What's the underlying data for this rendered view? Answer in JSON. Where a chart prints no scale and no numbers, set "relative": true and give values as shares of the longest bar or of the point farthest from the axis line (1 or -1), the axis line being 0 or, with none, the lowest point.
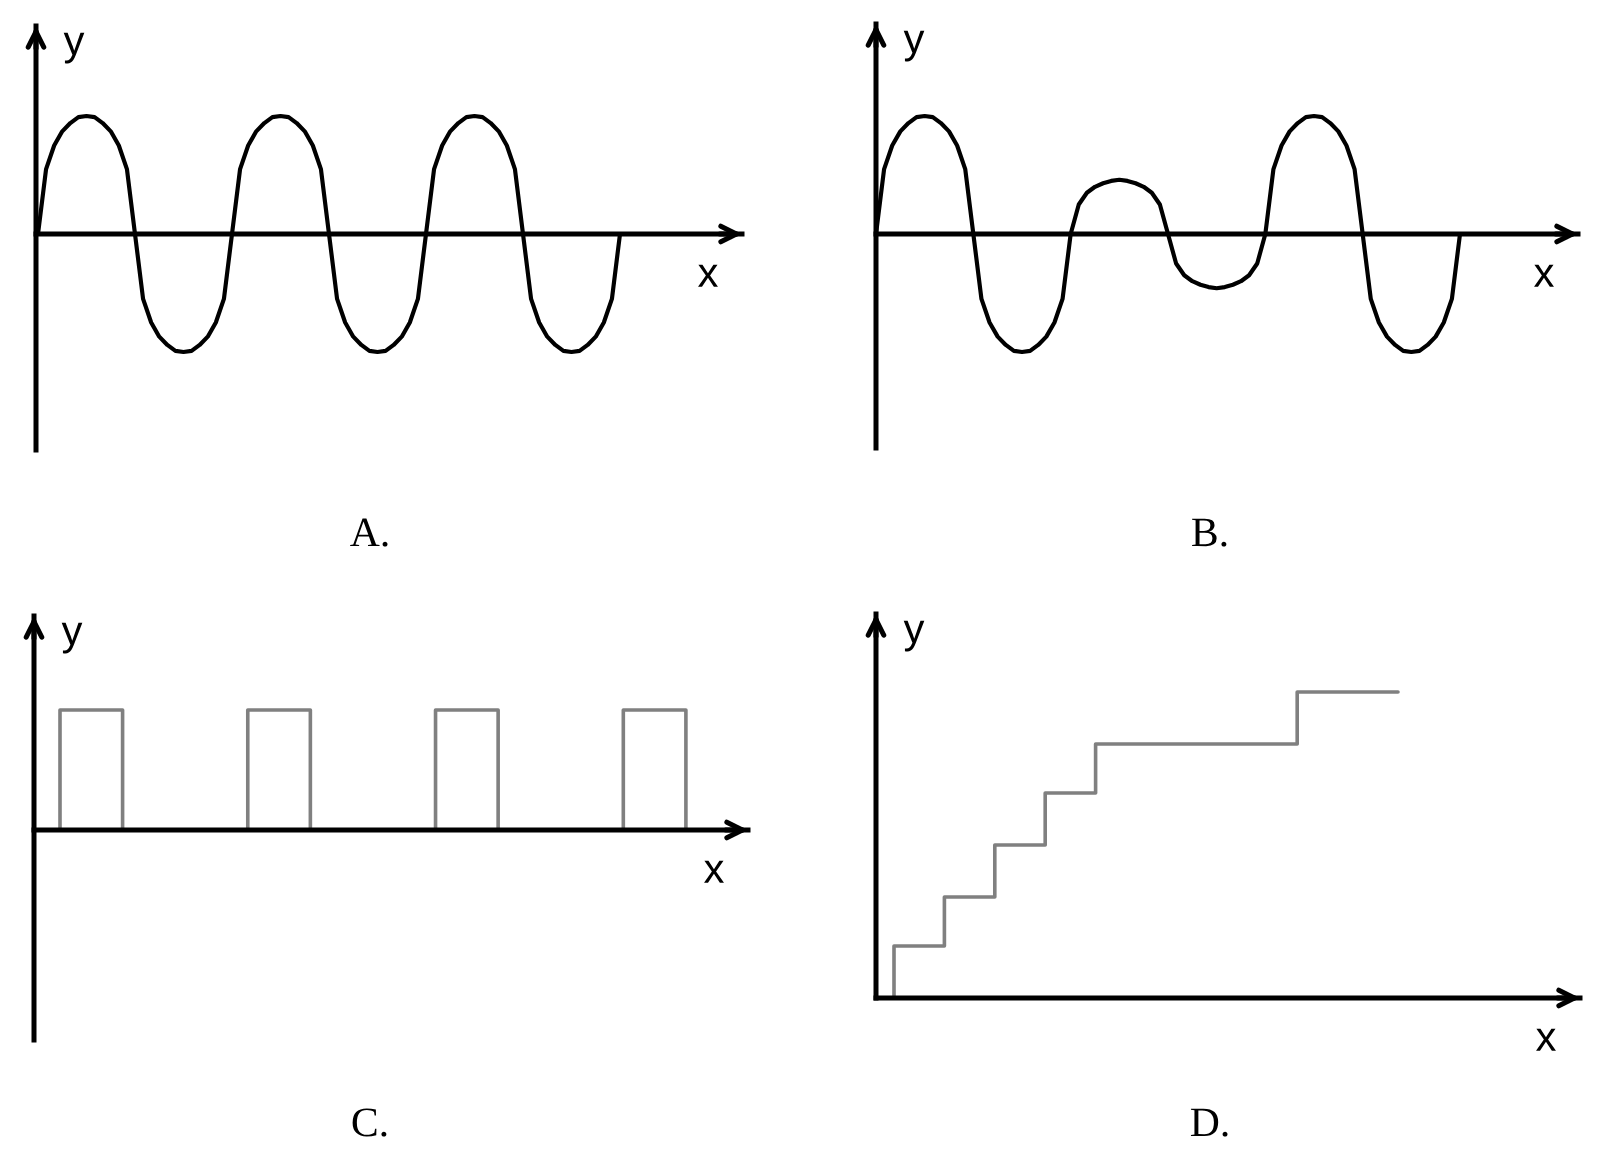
{
  "chart_data": [
    {
      "type": "line",
      "title": "A.",
      "xlabel": "x",
      "ylabel": "y",
      "relative": true,
      "color": "#000000",
      "categories": [
        null,
        null,
        null,
        null,
        null,
        null,
        null,
        null,
        null,
        null,
        null,
        null,
        null,
        null,
        null,
        null,
        null,
        null,
        null,
        null,
        null,
        null,
        null,
        null,
        null,
        null,
        null,
        null,
        null,
        null,
        null,
        null,
        null,
        null,
        null,
        null,
        null,
        null,
        null,
        null,
        null,
        null,
        null,
        null,
        null,
        null,
        null,
        null,
        null,
        null,
        null,
        null,
        null,
        null,
        null,
        null,
        null,
        null,
        null,
        null,
        null,
        null,
        null,
        null,
        null,
        null,
        null,
        null,
        null,
        null,
        null,
        null,
        null
      ],
      "values": [
        0,
        0.55,
        0.75,
        0.87,
        0.94,
        0.99,
        1,
        0.99,
        0.94,
        0.87,
        0.75,
        0.55,
        0,
        -0.55,
        -0.75,
        -0.87,
        -0.94,
        -0.99,
        -1,
        -0.99,
        -0.94,
        -0.87,
        -0.75,
        -0.55,
        0,
        0.55,
        0.75,
        0.87,
        0.94,
        0.99,
        1,
        0.99,
        0.94,
        0.87,
        0.75,
        0.55,
        0,
        -0.55,
        -0.75,
        -0.87,
        -0.94,
        -0.99,
        -1,
        -0.99,
        -0.94,
        -0.87,
        -0.75,
        -0.55,
        0,
        0.55,
        0.75,
        0.87,
        0.94,
        0.99,
        1,
        0.99,
        0.94,
        0.87,
        0.75,
        0.55,
        0,
        -0.55,
        -0.75,
        -0.87,
        -0.94,
        -0.99,
        -1,
        -0.99,
        -0.94,
        -0.87,
        -0.75,
        -0.55,
        0
      ]
    },
    {
      "type": "line",
      "title": "B.",
      "xlabel": "x",
      "ylabel": "y",
      "relative": true,
      "color": "#000000",
      "categories": [
        null,
        null,
        null,
        null,
        null,
        null,
        null,
        null,
        null,
        null,
        null,
        null,
        null,
        null,
        null,
        null,
        null,
        null,
        null,
        null,
        null,
        null,
        null,
        null,
        null,
        null,
        null,
        null,
        null,
        null,
        null,
        null,
        null,
        null,
        null,
        null,
        null,
        null,
        null,
        null,
        null,
        null,
        null,
        null,
        null,
        null,
        null,
        null,
        null,
        null,
        null,
        null,
        null,
        null,
        null,
        null,
        null,
        null,
        null,
        null,
        null,
        null,
        null,
        null,
        null,
        null,
        null,
        null,
        null,
        null,
        null,
        null,
        null
      ],
      "values": [
        0,
        0.55,
        0.75,
        0.87,
        0.94,
        0.99,
        1,
        0.99,
        0.94,
        0.87,
        0.75,
        0.55,
        0,
        -0.55,
        -0.75,
        -0.87,
        -0.94,
        -0.99,
        -1,
        -0.99,
        -0.94,
        -0.87,
        -0.75,
        -0.55,
        0,
        0.25,
        0.35,
        0.4,
        0.43,
        0.45,
        0.46,
        0.45,
        0.43,
        0.4,
        0.35,
        0.25,
        0,
        -0.25,
        -0.35,
        -0.4,
        -0.43,
        -0.45,
        -0.46,
        -0.45,
        -0.43,
        -0.4,
        -0.35,
        -0.25,
        0,
        0.55,
        0.75,
        0.87,
        0.94,
        0.99,
        1,
        0.99,
        0.94,
        0.87,
        0.75,
        0.55,
        0,
        -0.55,
        -0.75,
        -0.87,
        -0.94,
        -0.99,
        -1,
        -0.99,
        -0.94,
        -0.87,
        -0.75,
        -0.55,
        0
      ]
    },
    {
      "type": "step",
      "title": "C.",
      "xlabel": "x",
      "ylabel": "y",
      "relative": true,
      "color": "#808080",
      "categories": [
        null,
        null,
        null,
        null,
        null,
        null,
        null,
        null,
        null,
        null,
        null,
        null,
        null,
        null,
        null,
        null,
        null,
        null,
        null,
        null,
        null,
        null
      ],
      "values": [
        0,
        1,
        1,
        0,
        0,
        0,
        0,
        1,
        1,
        0,
        0,
        0,
        0,
        1,
        1,
        0,
        0,
        0,
        0,
        1,
        1,
        0
      ]
    },
    {
      "type": "step",
      "title": "D.",
      "xlabel": "x",
      "ylabel": "y",
      "relative": true,
      "color": "#808080",
      "categories": [
        null,
        null,
        null,
        null,
        null,
        null,
        null,
        null,
        null,
        null,
        null
      ],
      "values": [
        0,
        0.17,
        0.33,
        0.5,
        0.67,
        0.83,
        0.83,
        0.83,
        0.83,
        1,
        1
      ]
    }
  ]
}
